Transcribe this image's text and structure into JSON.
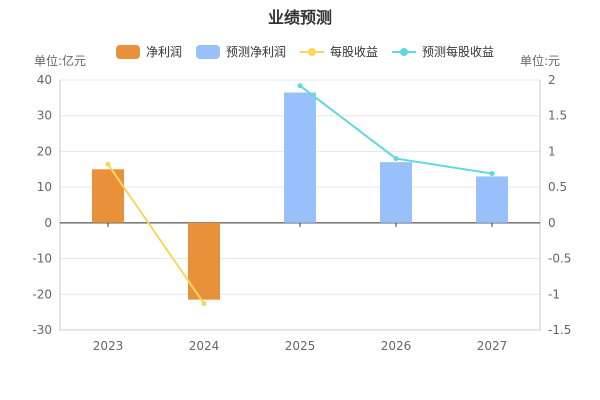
{
  "chart_data": {
    "type": "bar",
    "title": "业绩预测",
    "categories": [
      "2023",
      "2024",
      "2025",
      "2026",
      "2027"
    ],
    "left_axis": {
      "unit": "单位:亿元",
      "ylim": [
        -30,
        40
      ],
      "ticks": [
        "40",
        "30",
        "20",
        "10",
        "0",
        "-10",
        "-20",
        "-30"
      ]
    },
    "right_axis": {
      "unit": "单位:元",
      "ylim": [
        -1.5,
        2
      ],
      "ticks": [
        "2",
        "1.5",
        "1",
        "0.5",
        "0",
        "-0.5",
        "-1",
        "-1.5"
      ]
    },
    "series": [
      {
        "name": "净利润",
        "kind": "bar",
        "axis": "left",
        "color": "#E8913A",
        "values": [
          15,
          -21.5,
          null,
          null,
          null
        ]
      },
      {
        "name": "预测净利润",
        "kind": "bar",
        "axis": "left",
        "color": "#98C0FA",
        "values": [
          null,
          null,
          36.5,
          17,
          13
        ]
      },
      {
        "name": "每股收益",
        "kind": "line",
        "axis": "right",
        "color": "#FAD75A",
        "values": [
          0.82,
          -1.13,
          null,
          null,
          null
        ]
      },
      {
        "name": "预测每股收益",
        "kind": "line",
        "axis": "right",
        "color": "#5FD9DC",
        "values": [
          null,
          null,
          1.92,
          0.9,
          0.69
        ]
      }
    ],
    "grid": true,
    "legend_position": "top"
  }
}
